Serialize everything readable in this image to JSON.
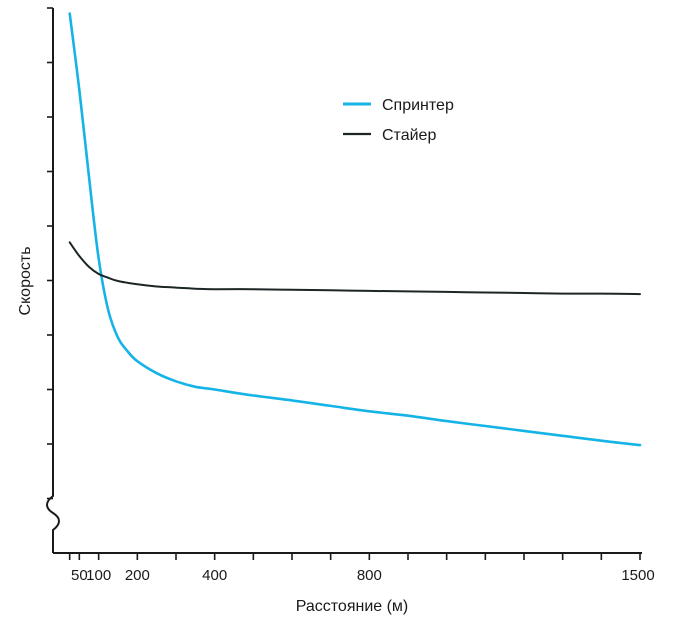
{
  "chart_data": {
    "type": "line",
    "title": "",
    "xlabel": "Расстояние (м)",
    "ylabel": "Скорость",
    "xlim": [
      0,
      1500
    ],
    "ylim": [
      0,
      10
    ],
    "y_axis_broken": true,
    "grid": false,
    "legend_position": "top-right",
    "x_tick_labels": [
      "50",
      "100",
      "200",
      "400",
      "800",
      "1500"
    ],
    "x_tick_values": [
      50,
      100,
      200,
      400,
      800,
      1500
    ],
    "x_minor_ticks": [
      25,
      300,
      500,
      600,
      700,
      900,
      1000,
      1100,
      1200,
      1300,
      1400
    ],
    "y_ticks": [
      1,
      2,
      3,
      4,
      5,
      6,
      7,
      8,
      9,
      10
    ],
    "series": [
      {
        "name": "Спринтер",
        "color": "#16b3e6",
        "x": [
          25,
          50,
          75,
          100,
          125,
          150,
          175,
          200,
          250,
          300,
          350,
          400,
          500,
          600,
          700,
          800,
          900,
          1000,
          1100,
          1200,
          1300,
          1400,
          1500
        ],
        "y": [
          9.9,
          8.5,
          6.9,
          5.4,
          4.45,
          3.95,
          3.7,
          3.52,
          3.3,
          3.15,
          3.05,
          3.0,
          2.89,
          2.8,
          2.7,
          2.6,
          2.52,
          2.42,
          2.33,
          2.24,
          2.15,
          2.06,
          1.98
        ]
      },
      {
        "name": "Стайер",
        "color": "#1c2626",
        "x": [
          25,
          50,
          75,
          100,
          125,
          150,
          200,
          250,
          300,
          350,
          400,
          500,
          600,
          700,
          800,
          900,
          1000,
          1100,
          1200,
          1300,
          1400,
          1500
        ],
        "y": [
          5.7,
          5.45,
          5.25,
          5.12,
          5.05,
          4.99,
          4.93,
          4.89,
          4.87,
          4.85,
          4.84,
          4.84,
          4.83,
          4.82,
          4.81,
          4.8,
          4.79,
          4.78,
          4.77,
          4.76,
          4.76,
          4.75
        ]
      }
    ]
  }
}
